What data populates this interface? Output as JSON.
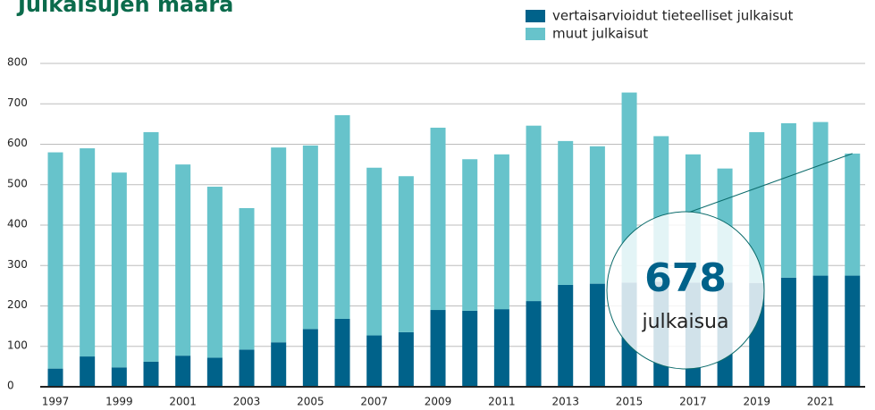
{
  "chart_data": {
    "type": "stacked_bar",
    "title": "Julkaisujen määrä",
    "categories": [
      "1997",
      null,
      "1999",
      null,
      "2001",
      null,
      "2003",
      null,
      "2005",
      null,
      "2007",
      null,
      "2009",
      null,
      "2011",
      null,
      "2013",
      null,
      "2015",
      null,
      "2017",
      null,
      "2019",
      null,
      "2021",
      null
    ],
    "series": [
      {
        "name": "vertaisarvioidut tieteelliset julkaisut",
        "color": "#00628a",
        "values": [
          45,
          75,
          48,
          62,
          77,
          72,
          92,
          110,
          143,
          168,
          127,
          135,
          190,
          188,
          192,
          212,
          252,
          255,
          258,
          260,
          258,
          258,
          257,
          270,
          275,
          275
        ]
      },
      {
        "name": "muut julkaisut",
        "color": "#67c3cb",
        "values": [
          535,
          515,
          482,
          568,
          473,
          423,
          350,
          482,
          454,
          504,
          415,
          386,
          451,
          375,
          383,
          434,
          356,
          340,
          470,
          360,
          317,
          282,
          373,
          382,
          380,
          302
        ]
      }
    ],
    "ylim": [
      0,
      800
    ],
    "yticks": [
      0,
      100,
      200,
      300,
      400,
      500,
      600,
      700,
      800
    ],
    "grid": true,
    "annotation": {
      "value": "678",
      "label": "julkaisua"
    }
  }
}
